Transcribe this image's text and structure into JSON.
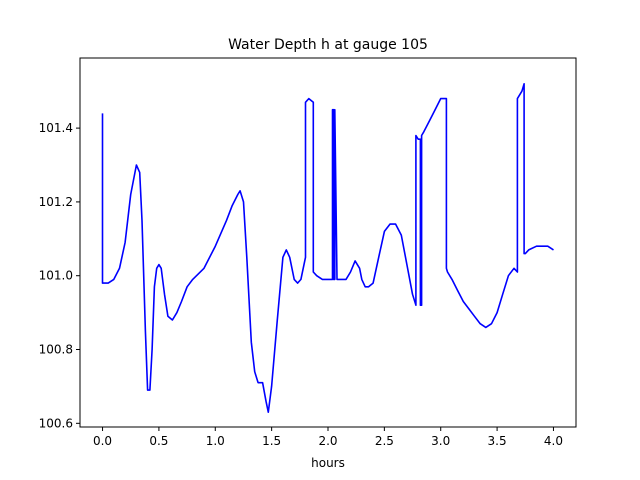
{
  "chart_data": {
    "type": "line",
    "title": "Water Depth h at gauge 105",
    "xlabel": "hours",
    "ylabel": "",
    "xlim": [
      -0.2,
      4.2
    ],
    "ylim": [
      100.59,
      101.59
    ],
    "xticks": [
      0.0,
      0.5,
      1.0,
      1.5,
      2.0,
      2.5,
      3.0,
      3.5,
      4.0
    ],
    "xtick_labels": [
      "0.0",
      "0.5",
      "1.0",
      "1.5",
      "2.0",
      "2.5",
      "3.0",
      "3.5",
      "4.0"
    ],
    "yticks": [
      100.6,
      100.8,
      101.0,
      101.2,
      101.4
    ],
    "ytick_labels": [
      "100.6",
      "100.8",
      "101.0",
      "101.2",
      "101.4"
    ],
    "grid": false,
    "legend": "none",
    "series": [
      {
        "color": "#0000ff",
        "x": [
          0.0,
          0.0,
          0.01,
          0.05,
          0.1,
          0.15,
          0.2,
          0.25,
          0.3,
          0.33,
          0.35,
          0.38,
          0.4,
          0.42,
          0.44,
          0.46,
          0.48,
          0.5,
          0.52,
          0.55,
          0.58,
          0.62,
          0.66,
          0.7,
          0.75,
          0.8,
          0.9,
          1.0,
          1.1,
          1.15,
          1.2,
          1.22,
          1.25,
          1.28,
          1.32,
          1.35,
          1.38,
          1.42,
          1.45,
          1.47,
          1.5,
          1.55,
          1.6,
          1.63,
          1.66,
          1.7,
          1.73,
          1.76,
          1.8,
          1.8,
          1.83,
          1.87,
          1.87,
          1.9,
          1.95,
          2.0,
          2.04,
          2.04,
          2.05,
          2.05,
          2.06,
          2.06,
          2.08,
          2.12,
          2.16,
          2.2,
          2.24,
          2.28,
          2.3,
          2.33,
          2.36,
          2.4,
          2.45,
          2.5,
          2.55,
          2.6,
          2.65,
          2.7,
          2.75,
          2.78,
          2.78,
          2.8,
          2.82,
          2.82,
          2.83,
          2.83,
          2.85,
          2.9,
          2.95,
          3.0,
          3.05,
          3.05,
          3.06,
          3.1,
          3.15,
          3.2,
          3.25,
          3.3,
          3.35,
          3.4,
          3.45,
          3.5,
          3.55,
          3.6,
          3.65,
          3.68,
          3.68,
          3.72,
          3.74,
          3.74,
          3.75,
          3.78,
          3.85,
          3.9,
          3.95,
          4.0
        ],
        "y": [
          101.44,
          100.98,
          100.98,
          100.98,
          100.99,
          101.02,
          101.09,
          101.22,
          101.3,
          101.28,
          101.15,
          100.85,
          100.69,
          100.69,
          100.8,
          100.97,
          101.02,
          101.03,
          101.02,
          100.95,
          100.89,
          100.88,
          100.9,
          100.93,
          100.97,
          100.99,
          101.02,
          101.08,
          101.15,
          101.19,
          101.22,
          101.23,
          101.2,
          101.05,
          100.82,
          100.74,
          100.71,
          100.71,
          100.66,
          100.63,
          100.7,
          100.88,
          101.05,
          101.07,
          101.05,
          100.99,
          100.98,
          100.99,
          101.05,
          101.47,
          101.48,
          101.47,
          101.01,
          101.0,
          100.99,
          100.99,
          100.99,
          101.45,
          101.45,
          100.99,
          100.99,
          101.45,
          100.99,
          100.99,
          100.99,
          101.01,
          101.04,
          101.02,
          100.99,
          100.97,
          100.97,
          100.98,
          101.05,
          101.12,
          101.14,
          101.14,
          101.11,
          101.03,
          100.95,
          100.92,
          101.38,
          101.37,
          101.37,
          100.92,
          100.92,
          101.38,
          101.39,
          101.42,
          101.45,
          101.48,
          101.48,
          101.02,
          101.01,
          100.99,
          100.96,
          100.93,
          100.91,
          100.89,
          100.87,
          100.86,
          100.87,
          100.9,
          100.95,
          101.0,
          101.02,
          101.01,
          101.48,
          101.5,
          101.52,
          101.06,
          101.06,
          101.07,
          101.08,
          101.08,
          101.08,
          101.07
        ]
      }
    ]
  }
}
